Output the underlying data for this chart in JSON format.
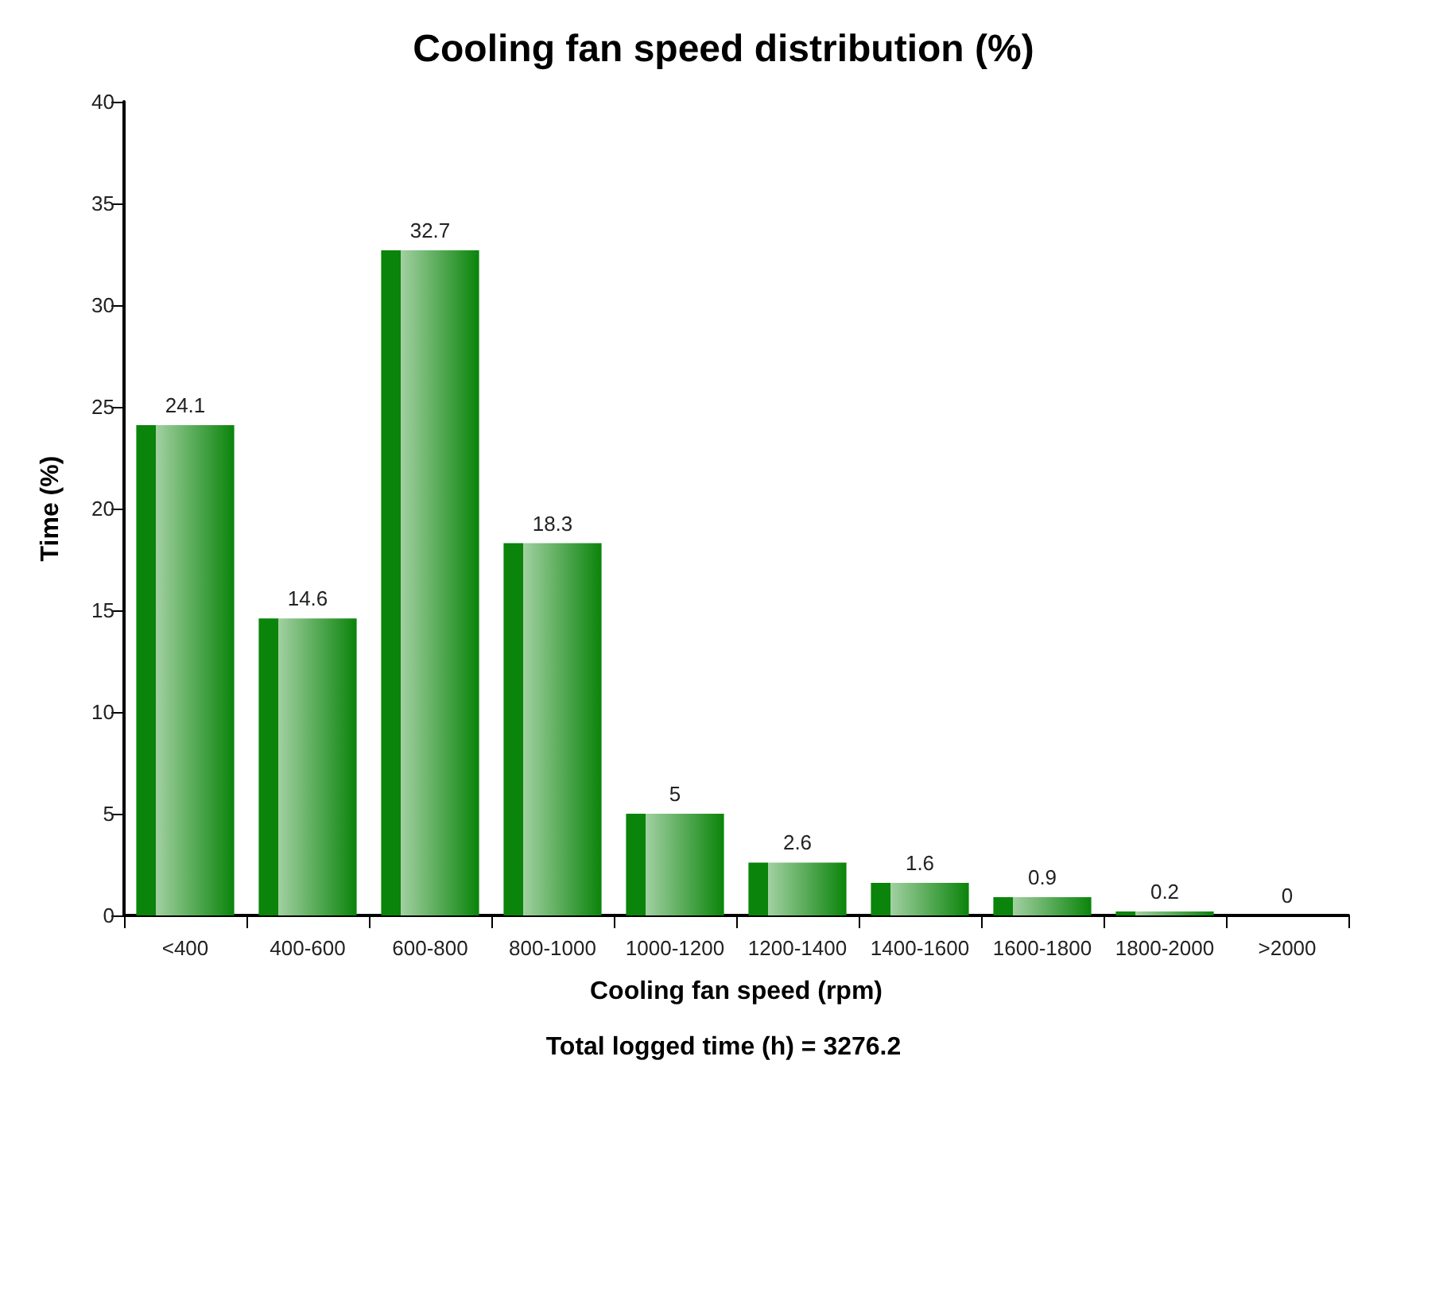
{
  "chart_data": {
    "type": "bar",
    "title": "Cooling fan speed distribution (%)",
    "xlabel": "Cooling fan speed (rpm)",
    "ylabel": "Time (%)",
    "annotations": [
      "Total logged time (h) = 3276.2"
    ],
    "categories": [
      "<400",
      "400-600",
      "600-800",
      "800-1000",
      "1000-1200",
      "1200-1400",
      "1400-1600",
      "1600-1800",
      "1800-2000",
      ">2000"
    ],
    "values": [
      24.1,
      14.6,
      32.7,
      18.3,
      5,
      2.6,
      1.6,
      0.9,
      0.2,
      0
    ],
    "color": "#0a840a",
    "ylim": [
      0,
      40
    ],
    "yticks": [
      0,
      5,
      10,
      15,
      20,
      25,
      30,
      35,
      40
    ],
    "data_labels": true,
    "grid": false
  }
}
